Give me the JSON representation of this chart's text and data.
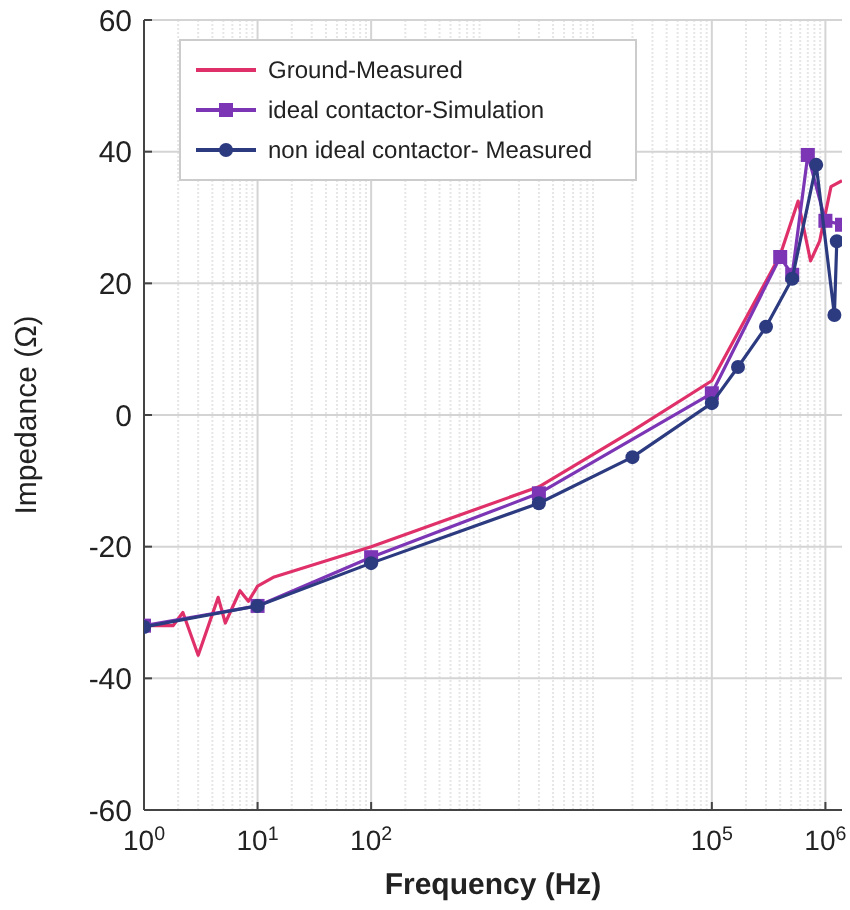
{
  "chart_data": {
    "type": "line",
    "xlabel": "Frequency (Hz)",
    "ylabel": "Impedance (Ω)",
    "log": "x",
    "xlim": [
      1,
      1400000
    ],
    "ylim": [
      -60,
      60
    ],
    "xticks": [
      {
        "value": 1,
        "label": "10$^{0}$"
      },
      {
        "value": 10,
        "label": "10$^{1}$"
      },
      {
        "value": 100,
        "label": "10$^{2}$"
      },
      {
        "value": 100000,
        "label": "10$^{5}$"
      },
      {
        "value": 1000000,
        "label": "10$^{6}$"
      }
    ],
    "yticks": [
      -60,
      -40,
      -20,
      0,
      20,
      40,
      60
    ],
    "grid": true,
    "legend": "top left",
    "series": [
      {
        "name": "Ground-Measured",
        "color": "#e0306a",
        "marker": "none",
        "x": [
          1,
          1.8,
          2.2,
          3,
          4.5,
          5.2,
          7,
          8.3,
          10,
          14,
          100,
          3000,
          20000,
          100000,
          400000,
          575000,
          740000,
          890000,
          1120000,
          1400000
        ],
        "values": [
          -32,
          -32,
          -30,
          -36.5,
          -27.7,
          -31.6,
          -26.7,
          -28.3,
          -26,
          -24.6,
          -20,
          -10.9,
          -2.4,
          5.2,
          24.3,
          32.5,
          23.4,
          26.4,
          34.7,
          35.6
        ]
      },
      {
        "name": "ideal contactor-Simulation",
        "color": "#7b35b5",
        "marker": "square",
        "x": [
          1,
          10,
          100,
          3000,
          100000,
          400000,
          510000,
          700000,
          1000000,
          1400000
        ],
        "values": [
          -32,
          -29,
          -21.6,
          -11.9,
          3.3,
          24,
          21.3,
          39.5,
          29.5,
          28.9
        ]
      },
      {
        "name": "non ideal contactor- Measured",
        "color": "#2c3a80",
        "marker": "circle",
        "x": [
          1,
          10,
          100,
          3000,
          20000,
          100000,
          170000,
          300000,
          510000,
          830000,
          1200000,
          1260000
        ],
        "values": [
          -32.2,
          -29,
          -22.5,
          -13.4,
          -6.4,
          1.8,
          7.3,
          13.4,
          20.7,
          38,
          15.2,
          26.4
        ]
      }
    ]
  }
}
